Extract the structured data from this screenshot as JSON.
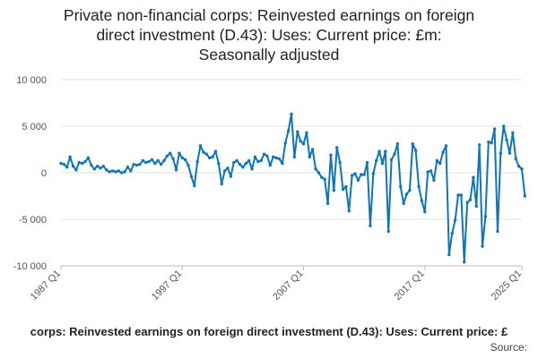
{
  "chart_data": {
    "type": "line",
    "title_lines": [
      "Private non-financial corps: Reinvested earnings on foreign",
      "direct investment (D.43): Uses: Current price: £m:",
      "Seasonally adjusted"
    ],
    "xlabel": "",
    "ylabel": "",
    "x_tick_labels": [
      "1987 Q1",
      "1997 Q1",
      "2007 Q1",
      "2017 Q1",
      "2025 Q1"
    ],
    "y_tick_labels": [
      "10 000",
      "5 000",
      "0",
      "-5 000",
      "-10 000"
    ],
    "y_ticks": [
      10000,
      5000,
      0,
      -5000,
      -10000
    ],
    "ylim": [
      -10000,
      10000
    ],
    "grid": true,
    "legend": "bottom",
    "series": [
      {
        "name": "Private non-financial corps: Reinvested earnings on foreign direct investment (D.43): Uses: Current price: £m: Seasonally adjusted",
        "color": "#0d75b8",
        "x": [
          "1987 Q1",
          "1987 Q2",
          "1987 Q3",
          "1987 Q4",
          "1988 Q1",
          "1988 Q2",
          "1988 Q3",
          "1988 Q4",
          "1989 Q1",
          "1989 Q2",
          "1989 Q3",
          "1989 Q4",
          "1990 Q1",
          "1990 Q2",
          "1990 Q3",
          "1990 Q4",
          "1991 Q1",
          "1991 Q2",
          "1991 Q3",
          "1991 Q4",
          "1992 Q1",
          "1992 Q2",
          "1992 Q3",
          "1992 Q4",
          "1993 Q1",
          "1993 Q2",
          "1993 Q3",
          "1993 Q4",
          "1994 Q1",
          "1994 Q2",
          "1994 Q3",
          "1994 Q4",
          "1995 Q1",
          "1995 Q2",
          "1995 Q3",
          "1995 Q4",
          "1996 Q1",
          "1996 Q2",
          "1996 Q3",
          "1996 Q4",
          "1997 Q1",
          "1997 Q2",
          "1997 Q3",
          "1997 Q4",
          "1998 Q1",
          "1998 Q2",
          "1998 Q3",
          "1998 Q4",
          "1999 Q1",
          "1999 Q2",
          "1999 Q3",
          "1999 Q4",
          "2000 Q1",
          "2000 Q2",
          "2000 Q3",
          "2000 Q4",
          "2001 Q1",
          "2001 Q2",
          "2001 Q3",
          "2001 Q4",
          "2002 Q1",
          "2002 Q2",
          "2002 Q3",
          "2002 Q4",
          "2003 Q1",
          "2003 Q2",
          "2003 Q3",
          "2003 Q4",
          "2004 Q1",
          "2004 Q2",
          "2004 Q3",
          "2004 Q4",
          "2005 Q1",
          "2005 Q2",
          "2005 Q3",
          "2005 Q4",
          "2006 Q1",
          "2006 Q2",
          "2006 Q3",
          "2006 Q4",
          "2007 Q1",
          "2007 Q2",
          "2007 Q3",
          "2007 Q4",
          "2008 Q1",
          "2008 Q2",
          "2008 Q3",
          "2008 Q4",
          "2009 Q1",
          "2009 Q2",
          "2009 Q3",
          "2009 Q4",
          "2010 Q1",
          "2010 Q2",
          "2010 Q3",
          "2010 Q4",
          "2011 Q1",
          "2011 Q2",
          "2011 Q3",
          "2011 Q4",
          "2012 Q1",
          "2012 Q2",
          "2012 Q3",
          "2012 Q4",
          "2013 Q1",
          "2013 Q2",
          "2013 Q3",
          "2013 Q4",
          "2014 Q1",
          "2014 Q2",
          "2014 Q3",
          "2014 Q4",
          "2015 Q1",
          "2015 Q2",
          "2015 Q3",
          "2015 Q4",
          "2016 Q1",
          "2016 Q2",
          "2016 Q3",
          "2016 Q4",
          "2017 Q1",
          "2017 Q2",
          "2017 Q3",
          "2017 Q4",
          "2018 Q1",
          "2018 Q2",
          "2018 Q3",
          "2018 Q4",
          "2019 Q1",
          "2019 Q2",
          "2019 Q3",
          "2019 Q4",
          "2020 Q1",
          "2020 Q2",
          "2020 Q3",
          "2020 Q4",
          "2021 Q1",
          "2021 Q2",
          "2021 Q3",
          "2021 Q4",
          "2022 Q1",
          "2022 Q2",
          "2022 Q3",
          "2022 Q4",
          "2023 Q1",
          "2023 Q2",
          "2023 Q3",
          "2023 Q4",
          "2024 Q1",
          "2024 Q2",
          "2024 Q3",
          "2024 Q4",
          "2025 Q1",
          "2025 Q2"
        ],
        "values": [
          1000,
          900,
          600,
          1700,
          700,
          300,
          1100,
          1000,
          1200,
          1600,
          800,
          400,
          700,
          500,
          700,
          300,
          100,
          200,
          100,
          200,
          0,
          100,
          600,
          200,
          900,
          800,
          900,
          1300,
          1100,
          1200,
          1400,
          1000,
          1300,
          900,
          1300,
          1800,
          2100,
          1500,
          300,
          2100,
          1600,
          1400,
          800,
          -400,
          -1400,
          1200,
          2900,
          2200,
          2000,
          1600,
          1700,
          2300,
          1000,
          -1200,
          200,
          500,
          -400,
          1100,
          1300,
          900,
          600,
          1000,
          1300,
          400,
          1700,
          1200,
          1300,
          2000,
          1800,
          800,
          1700,
          1600,
          1500,
          1000,
          3200,
          4500,
          6300,
          1700,
          4400,
          3400,
          3100,
          4300,
          1700,
          2500,
          400,
          0,
          -500,
          -700,
          -3300,
          1900,
          -1900,
          2700,
          1100,
          -1800,
          -1500,
          -4100,
          -300,
          -100,
          -800,
          -200,
          -200,
          1100,
          -5700,
          -100,
          1300,
          2300,
          1000,
          2300,
          -6300,
          1400,
          2000,
          3100,
          -1500,
          -3300,
          -2300,
          -1900,
          3100,
          2400,
          -1500,
          -3000,
          -4200,
          100,
          200,
          -800,
          1300,
          1000,
          2200,
          2900,
          -8800,
          -6500,
          -5100,
          -2400,
          -2400,
          -9600,
          -3200,
          -2900,
          -500,
          -3600,
          3000,
          -7900,
          -4700,
          3300,
          3200,
          4700,
          -6300,
          2100,
          5000,
          3500,
          2100,
          4300,
          1500,
          700,
          400,
          -2500
        ]
      }
    ],
    "footer_series_label": "corps: Reinvested earnings on foreign direct investment (D.43): Uses: Current price: £",
    "source_label": "Source:"
  }
}
